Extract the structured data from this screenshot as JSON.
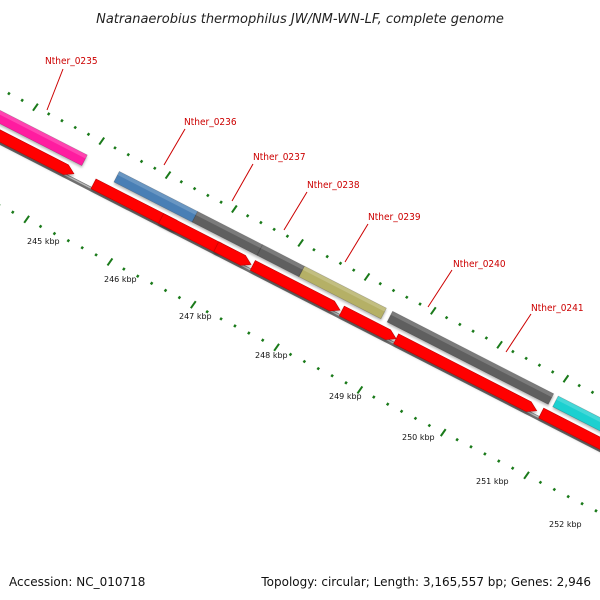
{
  "title": "Natranaerobius thermophilus JW/NM-WN-LF, complete genome",
  "footer": {
    "accession": "Accession: NC_010718",
    "summary": "Topology: circular; Length: 3,165,557 bp; Genes: 2,946"
  },
  "genes": [
    {
      "label": "Nther_0235",
      "color": "#ff1fa0"
    },
    {
      "label": "Nther_0236",
      "color": "#4a7fb5"
    },
    {
      "label": "Nther_0237",
      "color": "#5f5f5f"
    },
    {
      "label": "Nther_0238",
      "color": "#5f5f5f"
    },
    {
      "label": "Nther_0239",
      "color": "#b5b066"
    },
    {
      "label": "Nther_0240",
      "color": "#5f5f5f"
    },
    {
      "label": "Nther_0241",
      "color": "#1fd0d0"
    }
  ],
  "scale_labels": [
    "245 kbp",
    "246 kbp",
    "247 kbp",
    "248 kbp",
    "249 kbp",
    "250 kbp",
    "251 kbp",
    "252 kbp"
  ],
  "colors": {
    "cds": "#ff0000",
    "backbone": "#7f7f7f",
    "tick": "#1a7a1a",
    "label": "#cc0000"
  }
}
